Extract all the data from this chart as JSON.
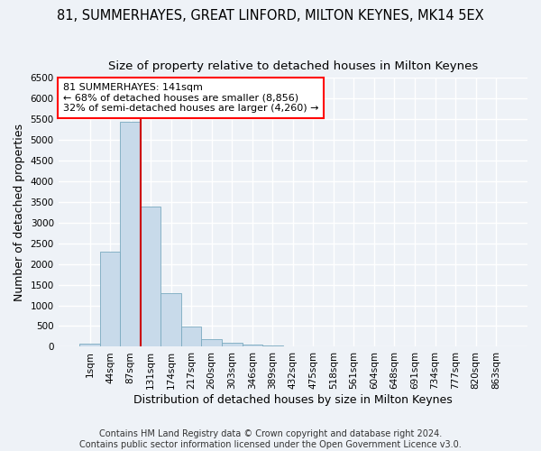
{
  "title": "81, SUMMERHAYES, GREAT LINFORD, MILTON KEYNES, MK14 5EX",
  "subtitle": "Size of property relative to detached houses in Milton Keynes",
  "xlabel": "Distribution of detached houses by size in Milton Keynes",
  "ylabel": "Number of detached properties",
  "bar_color": "#c8daea",
  "bar_edge_color": "#7aaabf",
  "categories": [
    "1sqm",
    "44sqm",
    "87sqm",
    "131sqm",
    "174sqm",
    "217sqm",
    "260sqm",
    "303sqm",
    "346sqm",
    "389sqm",
    "432sqm",
    "475sqm",
    "518sqm",
    "561sqm",
    "604sqm",
    "648sqm",
    "691sqm",
    "734sqm",
    "777sqm",
    "820sqm",
    "863sqm"
  ],
  "values": [
    70,
    2290,
    5430,
    3380,
    1290,
    480,
    175,
    90,
    55,
    30,
    10,
    5,
    2,
    2,
    1,
    0,
    0,
    0,
    0,
    0,
    0
  ],
  "vline_color": "#cc0000",
  "vline_bin": 3,
  "annotation_text": "81 SUMMERHAYES: 141sqm\n← 68% of detached houses are smaller (8,856)\n32% of semi-detached houses are larger (4,260) →",
  "annotation_box_color": "white",
  "annotation_box_edgecolor": "red",
  "ylim_max": 6500,
  "yticks": [
    0,
    500,
    1000,
    1500,
    2000,
    2500,
    3000,
    3500,
    4000,
    4500,
    5000,
    5500,
    6000,
    6500
  ],
  "footer": "Contains HM Land Registry data © Crown copyright and database right 2024.\nContains public sector information licensed under the Open Government Licence v3.0.",
  "background_color": "#eef2f7",
  "grid_color": "#ffffff",
  "title_fontsize": 10.5,
  "subtitle_fontsize": 9.5,
  "xlabel_fontsize": 9,
  "ylabel_fontsize": 9,
  "tick_fontsize": 7.5,
  "annot_fontsize": 8,
  "footer_fontsize": 7
}
